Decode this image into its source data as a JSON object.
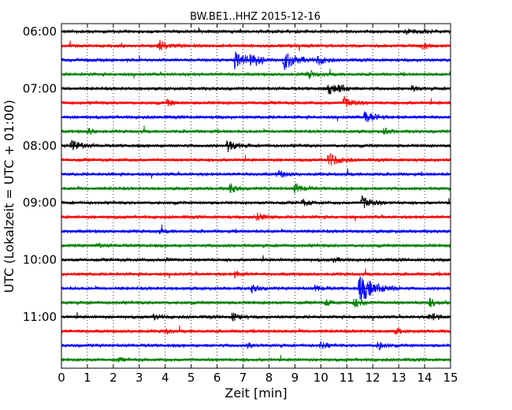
{
  "chart_data": {
    "type": "line",
    "title": "BW.BE1..HHZ 2015-12-16",
    "xlabel": "Zeit  [min]",
    "ylabel": "UTC (Lokalzeit = UTC + 01:00)",
    "xlim": [
      0,
      15
    ],
    "x_ticks": [
      0,
      1,
      2,
      3,
      4,
      5,
      6,
      7,
      8,
      9,
      10,
      11,
      12,
      13,
      14,
      15
    ],
    "x_tick_labels": [
      "0",
      "1",
      "2",
      "3",
      "4",
      "5",
      "6",
      "7",
      "8",
      "9",
      "10",
      "11",
      "12",
      "13",
      "14",
      "15"
    ],
    "y_tick_labels": [
      "06:00",
      "07:00",
      "08:00",
      "09:00",
      "10:00",
      "11:00"
    ],
    "trace_interval_minutes": 15,
    "grid": "vertical dotted",
    "colors": [
      "#000000",
      "#ff0000",
      "#0000ff",
      "#008000"
    ],
    "traces": [
      {
        "start": "06:00",
        "events": [
          [
            13.3,
            0.6
          ],
          [
            14.0,
            0.5
          ]
        ]
      },
      {
        "start": "06:15",
        "events": [
          [
            3.75,
            1.2
          ],
          [
            13.9,
            0.6
          ]
        ]
      },
      {
        "start": "06:30",
        "events": [
          [
            6.7,
            2.0
          ],
          [
            7.3,
            1.3
          ],
          [
            8.6,
            2.0
          ],
          [
            9.9,
            1.0
          ]
        ]
      },
      {
        "start": "06:45",
        "events": [
          [
            9.5,
            0.8
          ]
        ]
      },
      {
        "start": "07:00",
        "events": [
          [
            10.3,
            1.0
          ],
          [
            10.7,
            0.8
          ],
          [
            13.5,
            0.6
          ]
        ]
      },
      {
        "start": "07:15",
        "events": [
          [
            4.1,
            0.6
          ],
          [
            10.9,
            1.2
          ]
        ]
      },
      {
        "start": "07:30",
        "events": [
          [
            11.7,
            1.4
          ]
        ]
      },
      {
        "start": "07:45",
        "events": [
          [
            1.05,
            0.6
          ],
          [
            12.45,
            0.6
          ]
        ]
      },
      {
        "start": "08:00",
        "events": [
          [
            0.4,
            1.2
          ],
          [
            6.4,
            1.2
          ]
        ]
      },
      {
        "start": "08:15",
        "events": [
          [
            10.3,
            1.5
          ]
        ]
      },
      {
        "start": "08:30",
        "events": [
          [
            8.35,
            0.8
          ]
        ]
      },
      {
        "start": "08:45",
        "events": [
          [
            6.5,
            0.9
          ],
          [
            9.0,
            1.0
          ]
        ]
      },
      {
        "start": "09:00",
        "events": [
          [
            9.3,
            0.7
          ],
          [
            11.6,
            1.4
          ]
        ]
      },
      {
        "start": "09:15",
        "events": [
          [
            7.5,
            0.9
          ]
        ]
      },
      {
        "start": "09:30",
        "events": [
          [
            3.8,
            0.4
          ]
        ]
      },
      {
        "start": "09:45",
        "events": [
          [
            1.4,
            0.4
          ]
        ]
      },
      {
        "start": "10:00",
        "events": [
          [
            10.5,
            0.5
          ],
          [
            4.0,
            0.4
          ]
        ]
      },
      {
        "start": "10:15",
        "events": [
          [
            6.7,
            0.6
          ]
        ]
      },
      {
        "start": "10:30",
        "events": [
          [
            7.35,
            0.8
          ],
          [
            9.8,
            0.6
          ],
          [
            11.5,
            2.8
          ]
        ]
      },
      {
        "start": "10:45",
        "events": [
          [
            10.2,
            0.6
          ],
          [
            11.3,
            1.0
          ],
          [
            14.2,
            0.8
          ]
        ]
      },
      {
        "start": "11:00",
        "events": [
          [
            3.6,
            0.6
          ],
          [
            6.6,
            0.8
          ],
          [
            14.2,
            0.9
          ]
        ]
      },
      {
        "start": "11:15",
        "events": [
          [
            4.0,
            0.5
          ],
          [
            12.9,
            0.5
          ]
        ]
      },
      {
        "start": "11:30",
        "events": [
          [
            7.2,
            0.5
          ],
          [
            10.0,
            0.6
          ],
          [
            12.2,
            0.8
          ]
        ]
      },
      {
        "start": "11:45",
        "events": [
          [
            2.2,
            0.3
          ]
        ]
      }
    ]
  }
}
